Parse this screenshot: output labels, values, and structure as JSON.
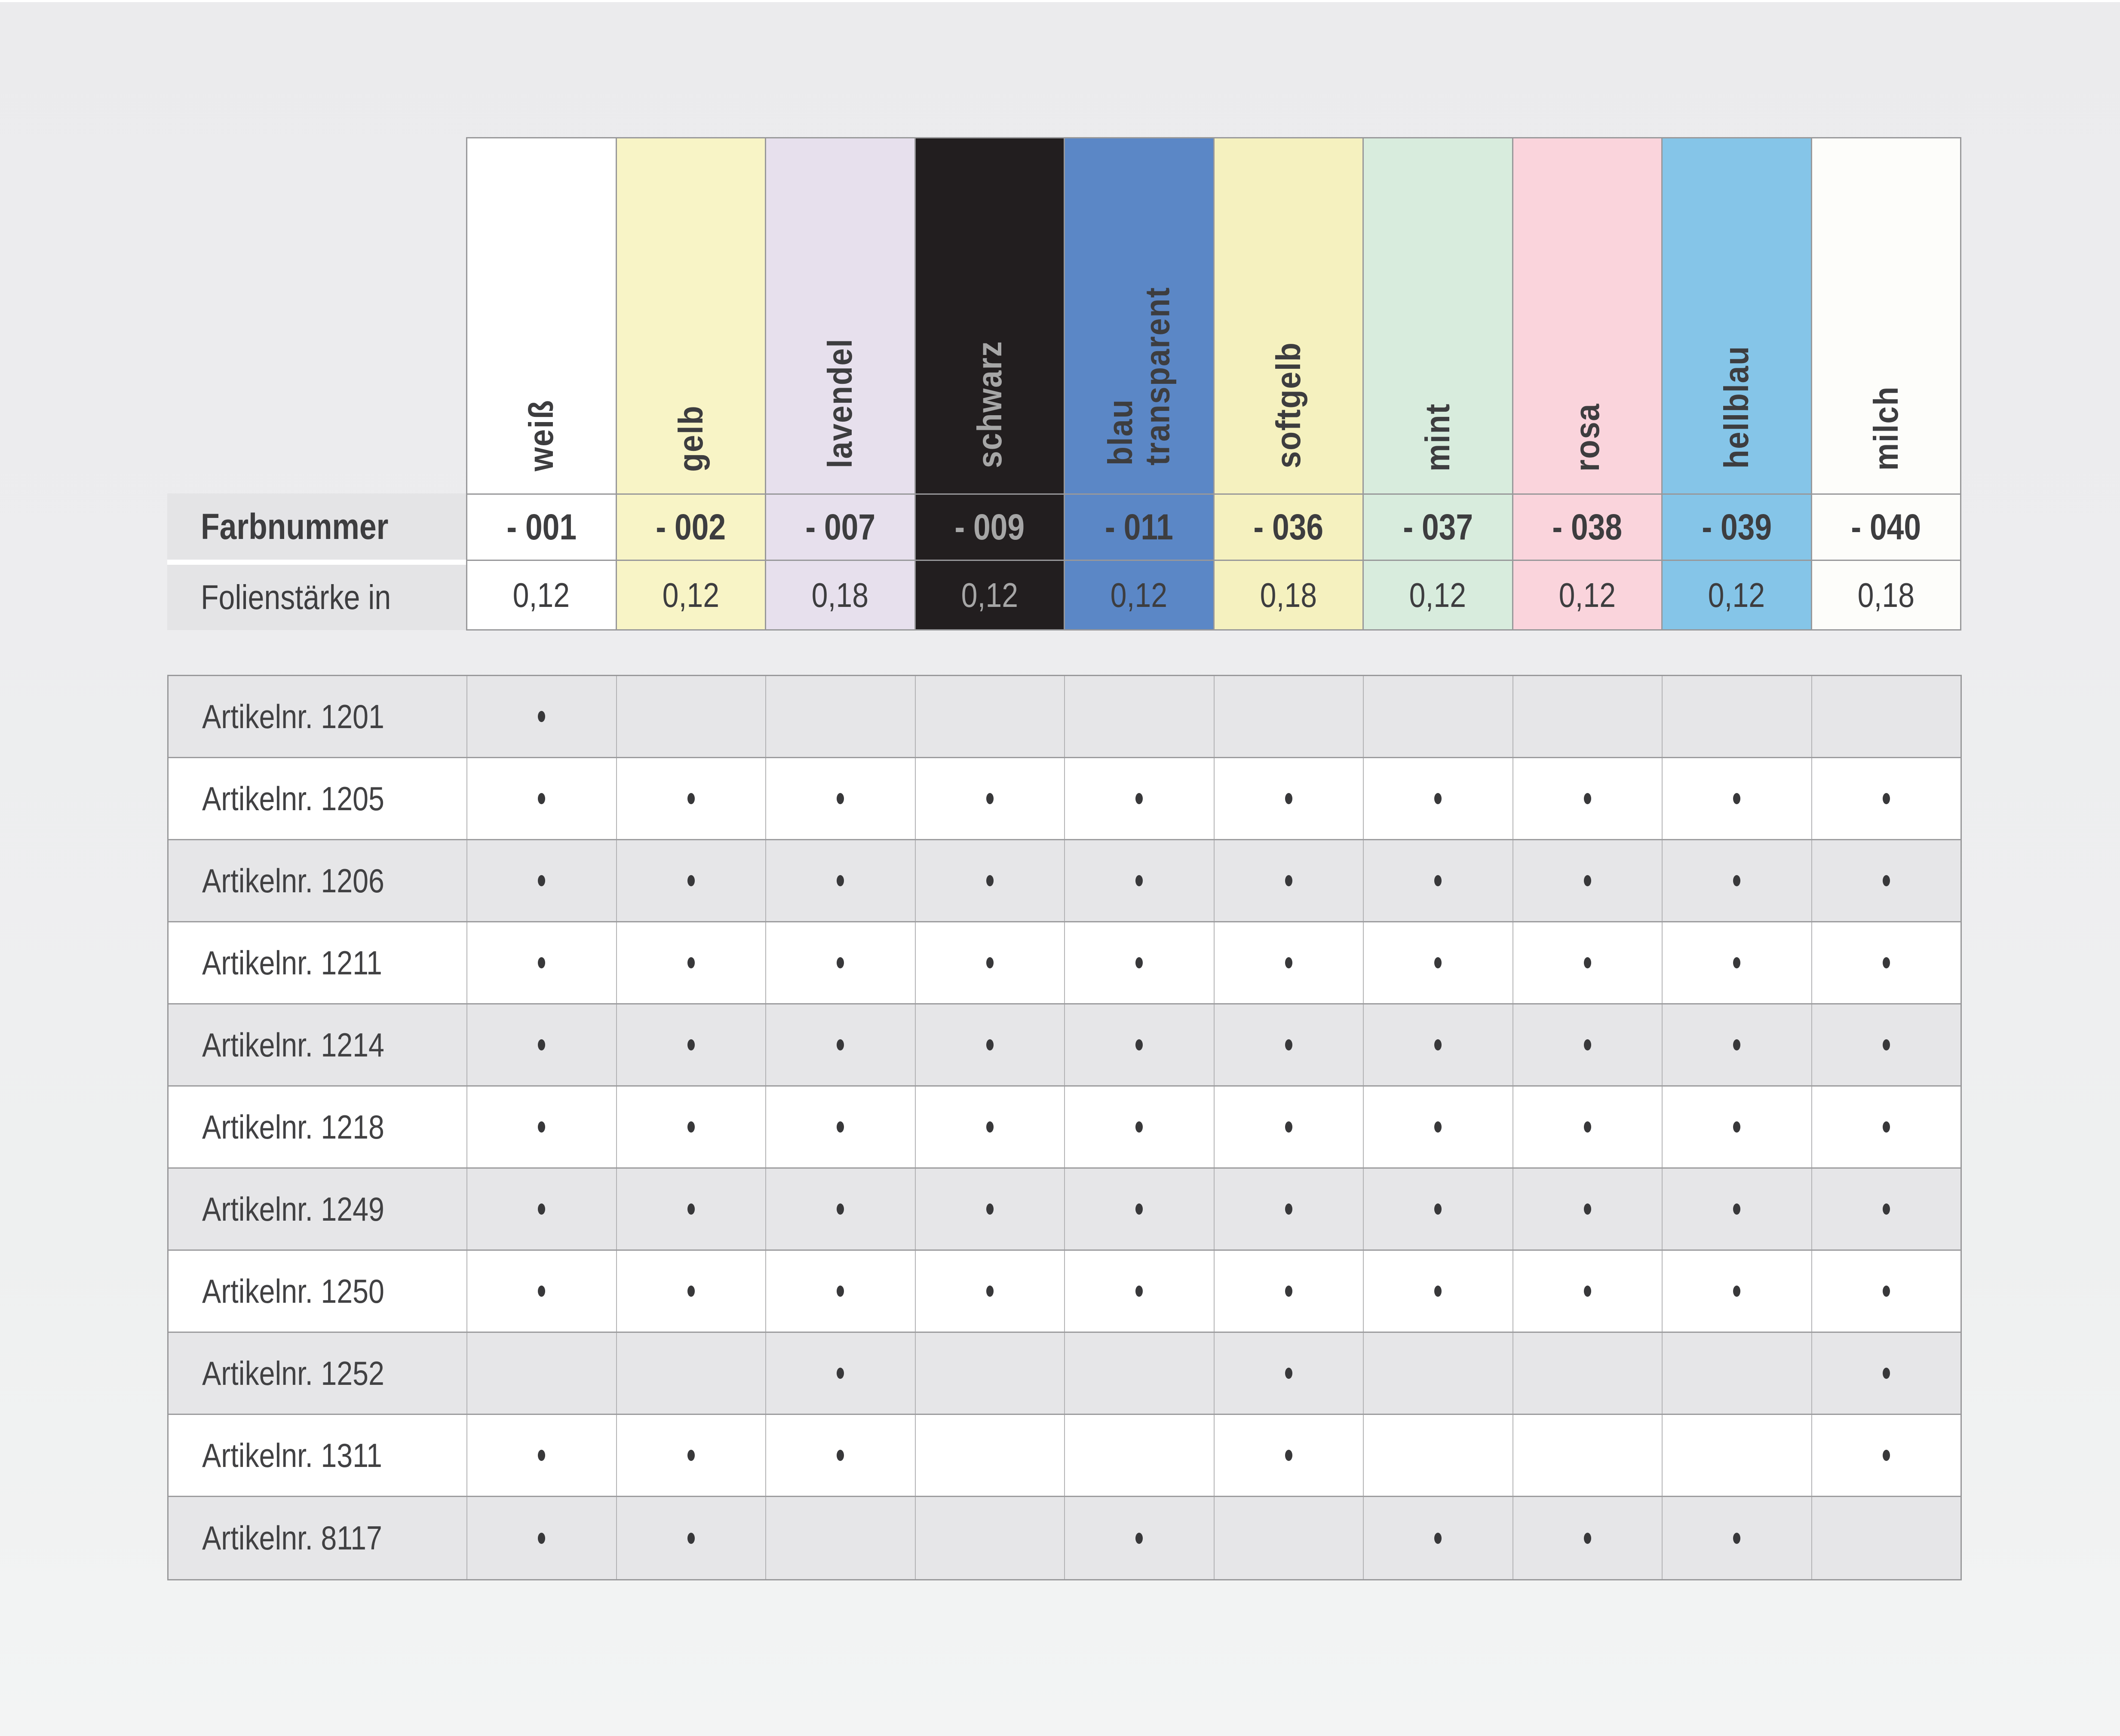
{
  "header": {
    "farbnummer_label": "Farbnummer",
    "staerke_label": "Folienstärke in",
    "columns": [
      {
        "name": "weiß",
        "two_line": false,
        "number": "- 001",
        "staerke": "0,12",
        "bg": "#ffffff"
      },
      {
        "name": "gelb",
        "two_line": false,
        "number": "- 002",
        "staerke": "0,12",
        "bg": "#f8f4c6"
      },
      {
        "name": "lavendel",
        "two_line": false,
        "number": "- 007",
        "staerke": "0,18",
        "bg": "#e7e0ed"
      },
      {
        "name": "schwarz",
        "two_line": false,
        "number": "- 009",
        "staerke": "0,12",
        "bg": "#221e1f",
        "fg": "#a6a6a6"
      },
      {
        "name": "blau transparent",
        "two_line": true,
        "number": "- 011",
        "staerke": "0,12",
        "bg": "#5b87c6"
      },
      {
        "name": "softgelb",
        "two_line": false,
        "number": "- 036",
        "staerke": "0,18",
        "bg": "#f5f1bf"
      },
      {
        "name": "mint",
        "two_line": false,
        "number": "- 037",
        "staerke": "0,12",
        "bg": "#d8ecdd"
      },
      {
        "name": "rosa",
        "two_line": false,
        "number": "- 038",
        "staerke": "0,12",
        "bg": "#fad4dc"
      },
      {
        "name": "hellblau",
        "two_line": false,
        "number": "- 039",
        "staerke": "0,12",
        "bg": "#85c5e8"
      },
      {
        "name": "milch",
        "two_line": false,
        "number": "- 040",
        "staerke": "0,18",
        "bg": "#fdfdfa"
      }
    ]
  },
  "body": {
    "rows": [
      {
        "label": "Artikelnr. 1201",
        "dots": [
          1,
          0,
          0,
          0,
          0,
          0,
          0,
          0,
          0,
          0
        ]
      },
      {
        "label": "Artikelnr. 1205",
        "dots": [
          1,
          1,
          1,
          1,
          1,
          1,
          1,
          1,
          1,
          1
        ]
      },
      {
        "label": "Artikelnr. 1206",
        "dots": [
          1,
          1,
          1,
          1,
          1,
          1,
          1,
          1,
          1,
          1
        ]
      },
      {
        "label": "Artikelnr. 1211",
        "dots": [
          1,
          1,
          1,
          1,
          1,
          1,
          1,
          1,
          1,
          1
        ]
      },
      {
        "label": "Artikelnr. 1214",
        "dots": [
          1,
          1,
          1,
          1,
          1,
          1,
          1,
          1,
          1,
          1
        ]
      },
      {
        "label": "Artikelnr. 1218",
        "dots": [
          1,
          1,
          1,
          1,
          1,
          1,
          1,
          1,
          1,
          1
        ]
      },
      {
        "label": "Artikelnr. 1249",
        "dots": [
          1,
          1,
          1,
          1,
          1,
          1,
          1,
          1,
          1,
          1
        ]
      },
      {
        "label": "Artikelnr. 1250",
        "dots": [
          1,
          1,
          1,
          1,
          1,
          1,
          1,
          1,
          1,
          1
        ]
      },
      {
        "label": "Artikelnr. 1252",
        "dots": [
          0,
          0,
          1,
          0,
          0,
          1,
          0,
          0,
          0,
          1
        ]
      },
      {
        "label": "Artikelnr. 1311",
        "dots": [
          1,
          1,
          1,
          0,
          0,
          1,
          0,
          0,
          0,
          1
        ]
      },
      {
        "label": "Artikelnr. 8117",
        "dots": [
          1,
          1,
          0,
          0,
          1,
          0,
          1,
          1,
          1,
          0
        ]
      }
    ]
  },
  "colors": {
    "page_bg_top": "#ebebed",
    "page_bg_bottom": "#f3f4f4",
    "grid_outer": "#98989a",
    "grid_inner": "#b2b2b4",
    "row_separator": "#9c9c9e",
    "label_cell_bg": "#e4e4e6",
    "row_alt_bg": "#e6e6e8",
    "text": "#3d3d3f",
    "text_on_black": "#a6a6a6",
    "dot": "#38383a"
  }
}
